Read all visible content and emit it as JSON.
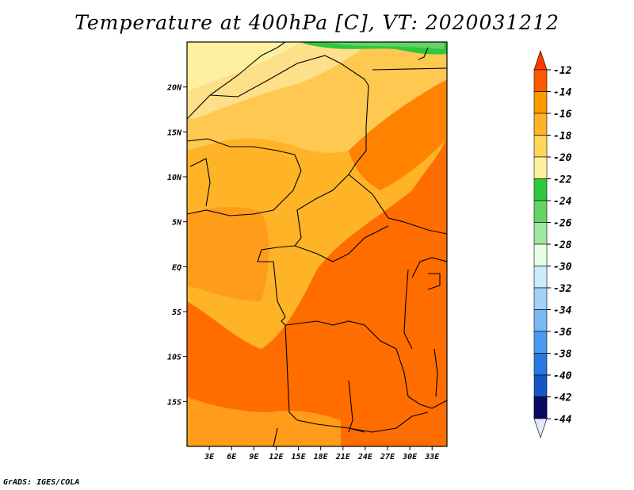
{
  "title": "Temperature at 400hPa [C], VT: 2020031212",
  "footer": "GrADS: IGES/COLA",
  "map": {
    "lat_labels": [
      "20N",
      "15N",
      "10N",
      "5N",
      "EQ",
      "5S",
      "10S",
      "15S"
    ],
    "lat_values": [
      20,
      15,
      10,
      5,
      0,
      -5,
      -10,
      -15
    ],
    "lon_labels": [
      "3E",
      "6E",
      "9E",
      "12E",
      "15E",
      "18E",
      "21E",
      "24E",
      "27E",
      "30E",
      "33E"
    ],
    "lon_values": [
      3,
      6,
      9,
      12,
      15,
      18,
      21,
      24,
      27,
      30,
      33
    ],
    "lat_range": [
      -20,
      25
    ],
    "lon_range": [
      0,
      35
    ]
  },
  "colorbar": {
    "labels": [
      "-12",
      "-14",
      "-16",
      "-18",
      "-20",
      "-22",
      "-24",
      "-26",
      "-28",
      "-30",
      "-32",
      "-34",
      "-36",
      "-38",
      "-40",
      "-42",
      "-44"
    ],
    "colors": [
      "#ff5a00",
      "#ff9900",
      "#ffb428",
      "#ffd65a",
      "#fff0a0",
      "#2dc83c",
      "#64d364",
      "#a0e6a0",
      "#e6ffe6",
      "#ccebff",
      "#a0d2fa",
      "#78b8f5",
      "#4b9bf0",
      "#2878e0",
      "#1455c8",
      "#0a2896",
      "#0a0a64"
    ]
  }
}
